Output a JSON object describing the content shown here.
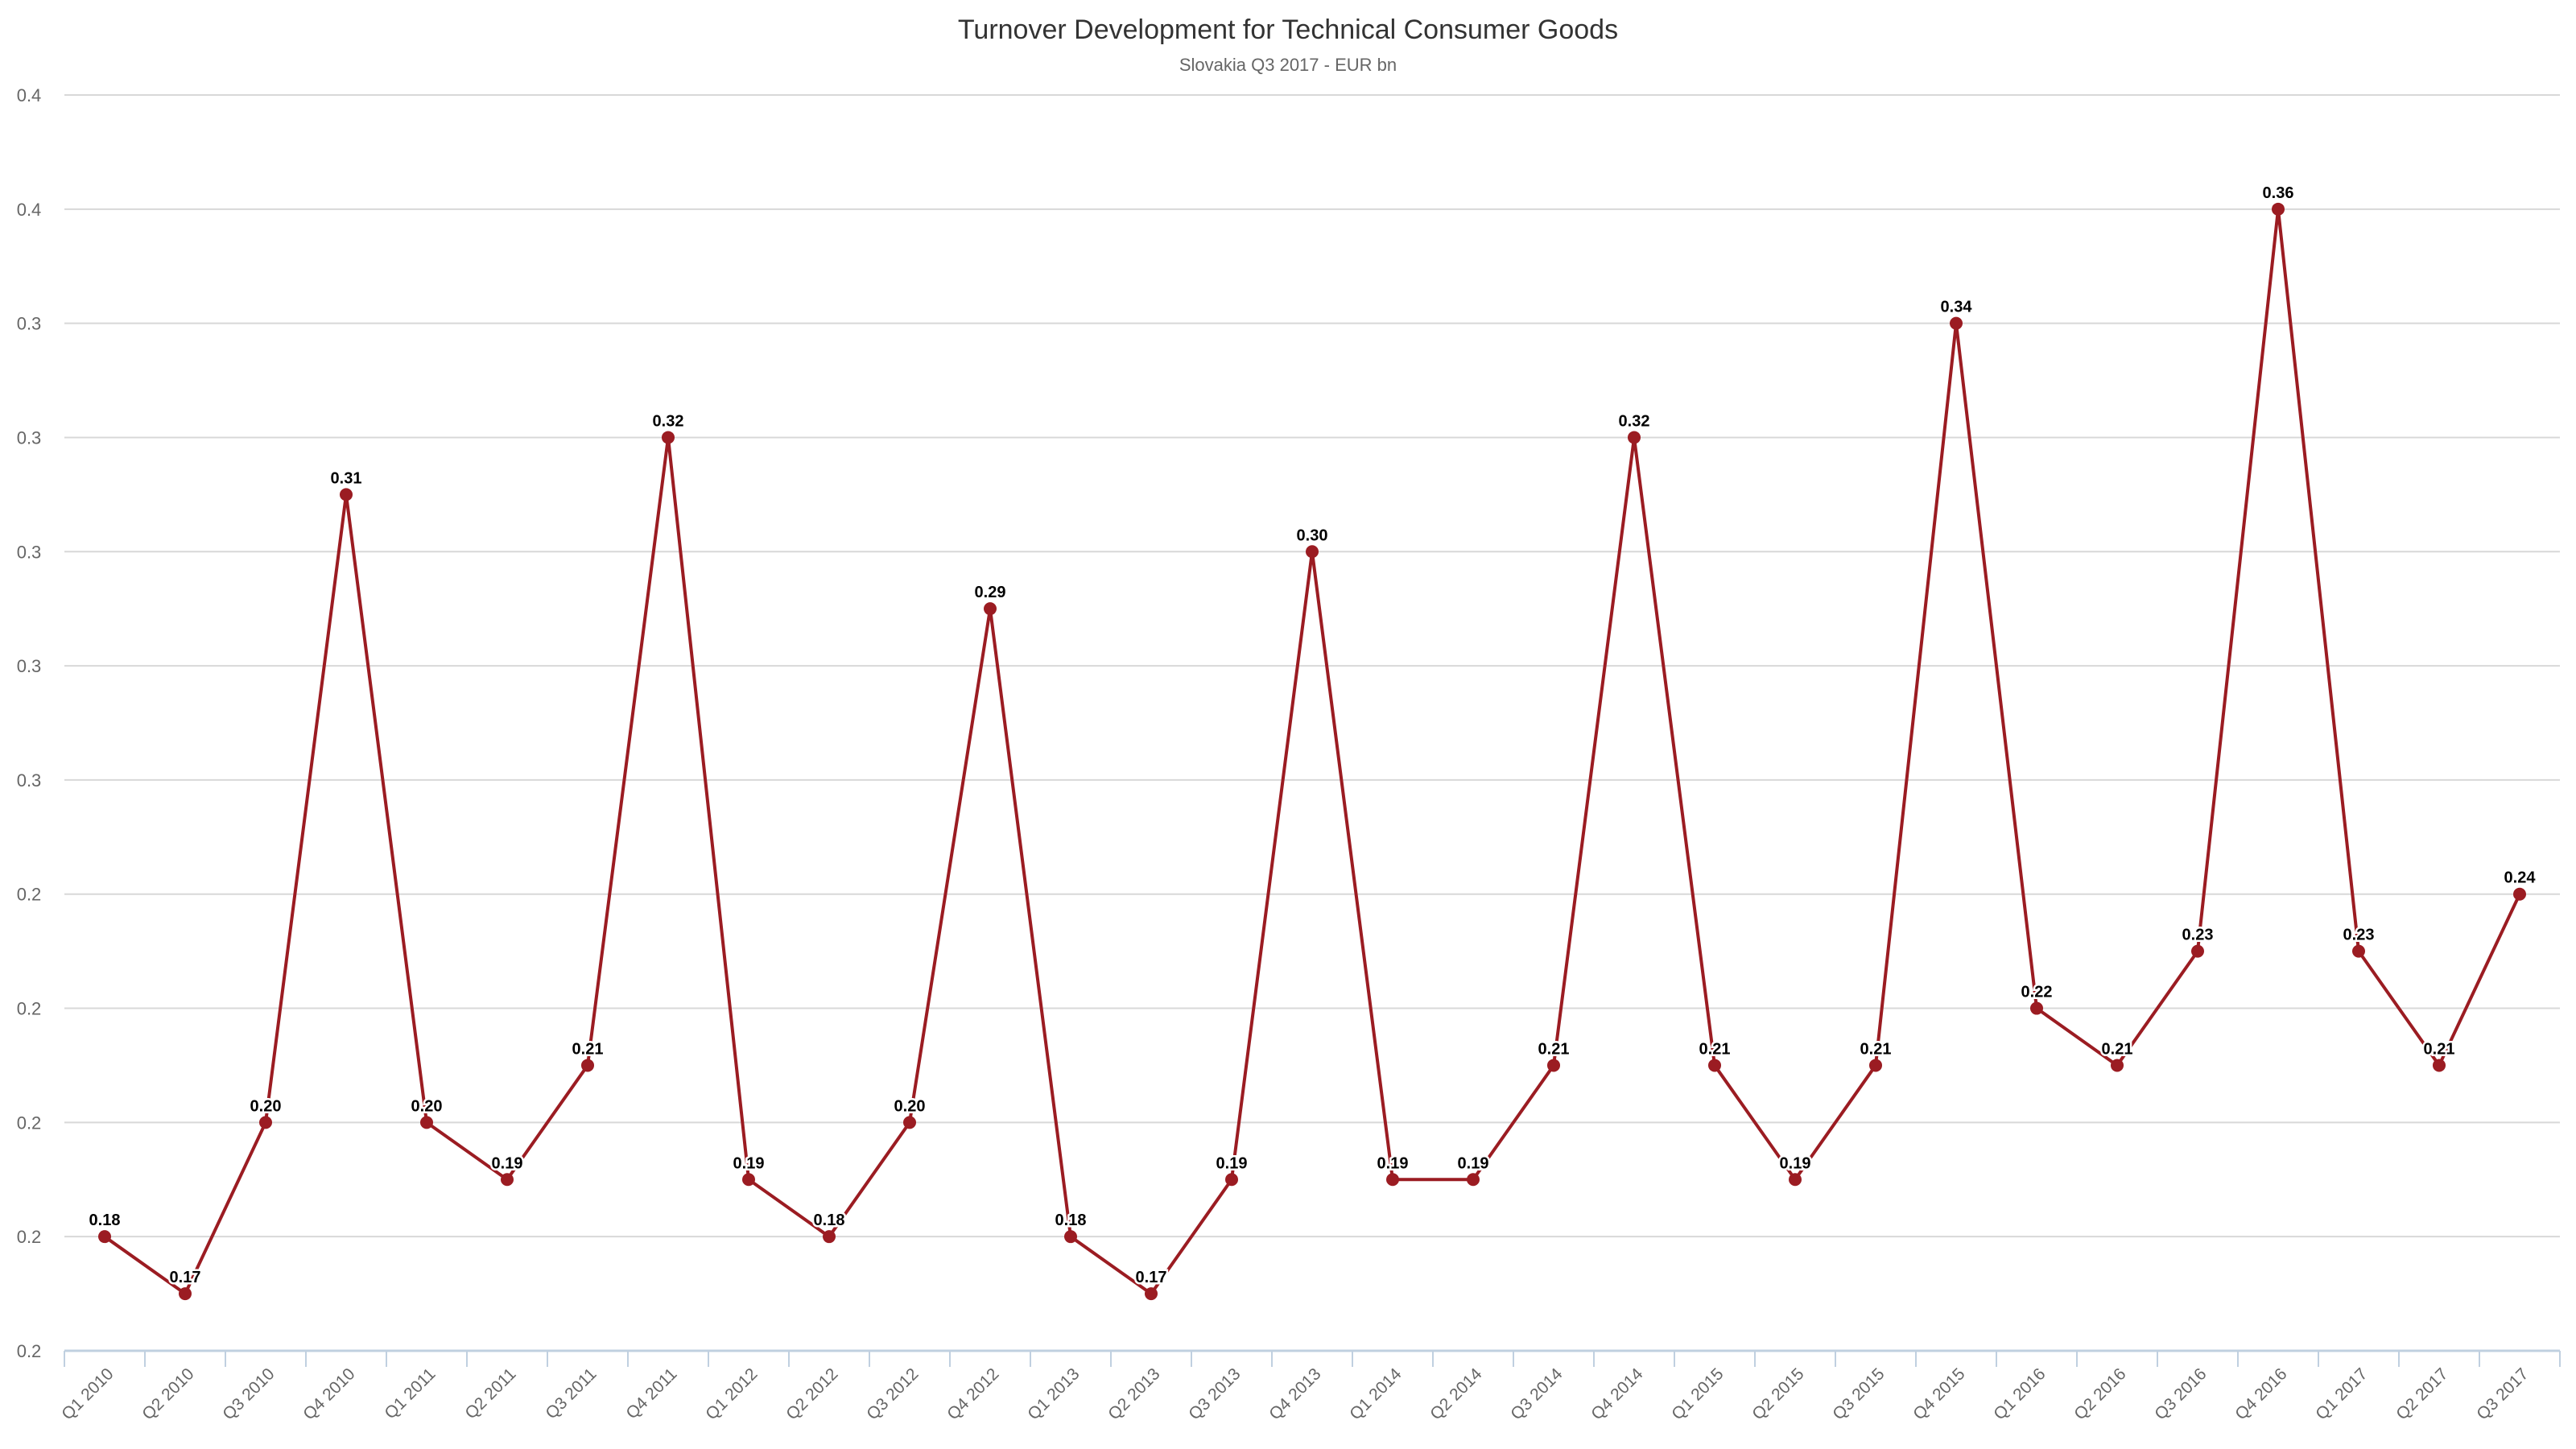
{
  "chart_data": {
    "type": "line",
    "title": "Turnover Development for Technical Consumer Goods",
    "subtitle": "Slovakia Q3 2017 - EUR bn",
    "xlabel": "",
    "ylabel": "",
    "ylim": [
      0.16,
      0.38
    ],
    "ytick_values": [
      0.16,
      0.18,
      0.2,
      0.22,
      0.24,
      0.26,
      0.28,
      0.3,
      0.32,
      0.34,
      0.36,
      0.38
    ],
    "ytick_labels": [
      "0.2",
      "0.2",
      "0.2",
      "0.2",
      "0.2",
      "0.3",
      "0.3",
      "0.3",
      "0.3",
      "0.3",
      "0.4",
      "0.4"
    ],
    "grid": true,
    "legend": "none",
    "categories": [
      "Q1 2010",
      "Q2 2010",
      "Q3 2010",
      "Q4 2010",
      "Q1 2011",
      "Q2 2011",
      "Q3 2011",
      "Q4 2011",
      "Q1 2012",
      "Q2 2012",
      "Q3 2012",
      "Q4 2012",
      "Q1 2013",
      "Q2 2013",
      "Q3 2013",
      "Q4 2013",
      "Q1 2014",
      "Q2 2014",
      "Q3 2014",
      "Q4 2014",
      "Q1 2015",
      "Q2 2015",
      "Q3 2015",
      "Q4 2015",
      "Q1 2016",
      "Q2 2016",
      "Q3 2016",
      "Q4 2016",
      "Q1 2017",
      "Q2 2017",
      "Q3 2017"
    ],
    "series": [
      {
        "name": "Turnover",
        "color": "#9b1c22",
        "values": [
          0.18,
          0.17,
          0.2,
          0.31,
          0.2,
          0.19,
          0.21,
          0.32,
          0.19,
          0.18,
          0.2,
          0.29,
          0.18,
          0.17,
          0.19,
          0.3,
          0.19,
          0.19,
          0.21,
          0.32,
          0.21,
          0.19,
          0.21,
          0.34,
          0.22,
          0.21,
          0.23,
          0.36,
          0.23,
          0.21,
          0.24
        ],
        "labels": [
          "0.18",
          "0.17",
          "0.20",
          "0.31",
          "0.20",
          "0.19",
          "0.21",
          "0.32",
          "0.19",
          "0.18",
          "0.20",
          "0.29",
          "0.18",
          "0.17",
          "0.19",
          "0.30",
          "0.19",
          "0.19",
          "0.21",
          "0.32",
          "0.21",
          "0.19",
          "0.21",
          "0.34",
          "0.22",
          "0.21",
          "0.23",
          "0.36",
          "0.23",
          "0.21",
          "0.24"
        ]
      }
    ]
  }
}
